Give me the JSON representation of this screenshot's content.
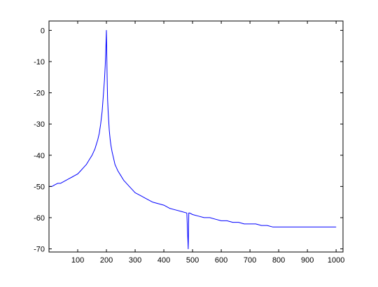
{
  "chart_data": {
    "type": "line",
    "title": "",
    "xlabel": "",
    "ylabel": "",
    "xlim": [
      0,
      1024
    ],
    "ylim": [
      -71,
      3
    ],
    "grid": false,
    "legend": "none",
    "x_ticks": [
      100,
      200,
      300,
      400,
      500,
      600,
      700,
      800,
      900,
      1000
    ],
    "y_ticks": [
      0,
      -10,
      -20,
      -30,
      -40,
      -50,
      -60,
      -70
    ],
    "x_tick_labels": [
      "100",
      "200",
      "300",
      "400",
      "500",
      "600",
      "700",
      "800",
      "900",
      "1000"
    ],
    "y_tick_labels": [
      "0",
      "-10",
      "-20",
      "-30",
      "-40",
      "-50",
      "-60",
      "-70"
    ],
    "series": [
      {
        "color": "#0000ff",
        "x": [
          1,
          10,
          20,
          30,
          40,
          50,
          60,
          70,
          80,
          90,
          100,
          110,
          120,
          130,
          140,
          150,
          160,
          170,
          175,
          180,
          185,
          190,
          193,
          196,
          198,
          200,
          201,
          202,
          203,
          204,
          206,
          208,
          210,
          213,
          216,
          220,
          225,
          230,
          240,
          250,
          260,
          270,
          280,
          290,
          300,
          320,
          340,
          360,
          380,
          400,
          420,
          440,
          460,
          480,
          485,
          487,
          490,
          500,
          520,
          540,
          560,
          580,
          600,
          620,
          640,
          660,
          680,
          700,
          720,
          740,
          760,
          780,
          800,
          820,
          840,
          860,
          880,
          900,
          920,
          940,
          960,
          980,
          1000
        ],
        "y": [
          -50,
          -50,
          -49.5,
          -49,
          -49,
          -48.5,
          -48,
          -47.5,
          -47,
          -46.5,
          -46,
          -45,
          -44,
          -43,
          -41.5,
          -40,
          -38,
          -35,
          -33,
          -30,
          -26,
          -20,
          -16,
          -11,
          -6,
          0,
          -6,
          -13,
          -18,
          -22,
          -26,
          -29,
          -32,
          -35,
          -37,
          -39,
          -41,
          -43,
          -45,
          -46.5,
          -48,
          -49,
          -50,
          -51,
          -52,
          -53,
          -54,
          -55,
          -55.5,
          -56,
          -57,
          -57.5,
          -58,
          -58.5,
          -70,
          -58.5,
          -58.5,
          -59,
          -59.5,
          -60,
          -60,
          -60.5,
          -61,
          -61,
          -61.5,
          -61.5,
          -62,
          -62,
          -62,
          -62.5,
          -62.5,
          -63,
          -63,
          -63,
          -63,
          -63,
          -63,
          -63,
          -63,
          -63,
          -63,
          -63,
          -63
        ]
      }
    ]
  }
}
